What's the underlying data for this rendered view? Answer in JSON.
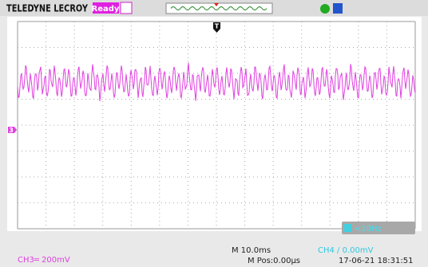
{
  "header": {
    "brand": "TELEDYNE LECROY",
    "status": "Ready"
  },
  "display": {
    "channel_marker": "3",
    "trigger_marker": "T",
    "frequency": "<10Hz"
  },
  "footer": {
    "channel3": "CH3═ 200mV",
    "timebase": "M 10.0ms",
    "position": "M Pos:0.00μs",
    "trigger": "CH4 / 0.00mV",
    "timestamp": "17-06-21 18:31:51"
  }
}
